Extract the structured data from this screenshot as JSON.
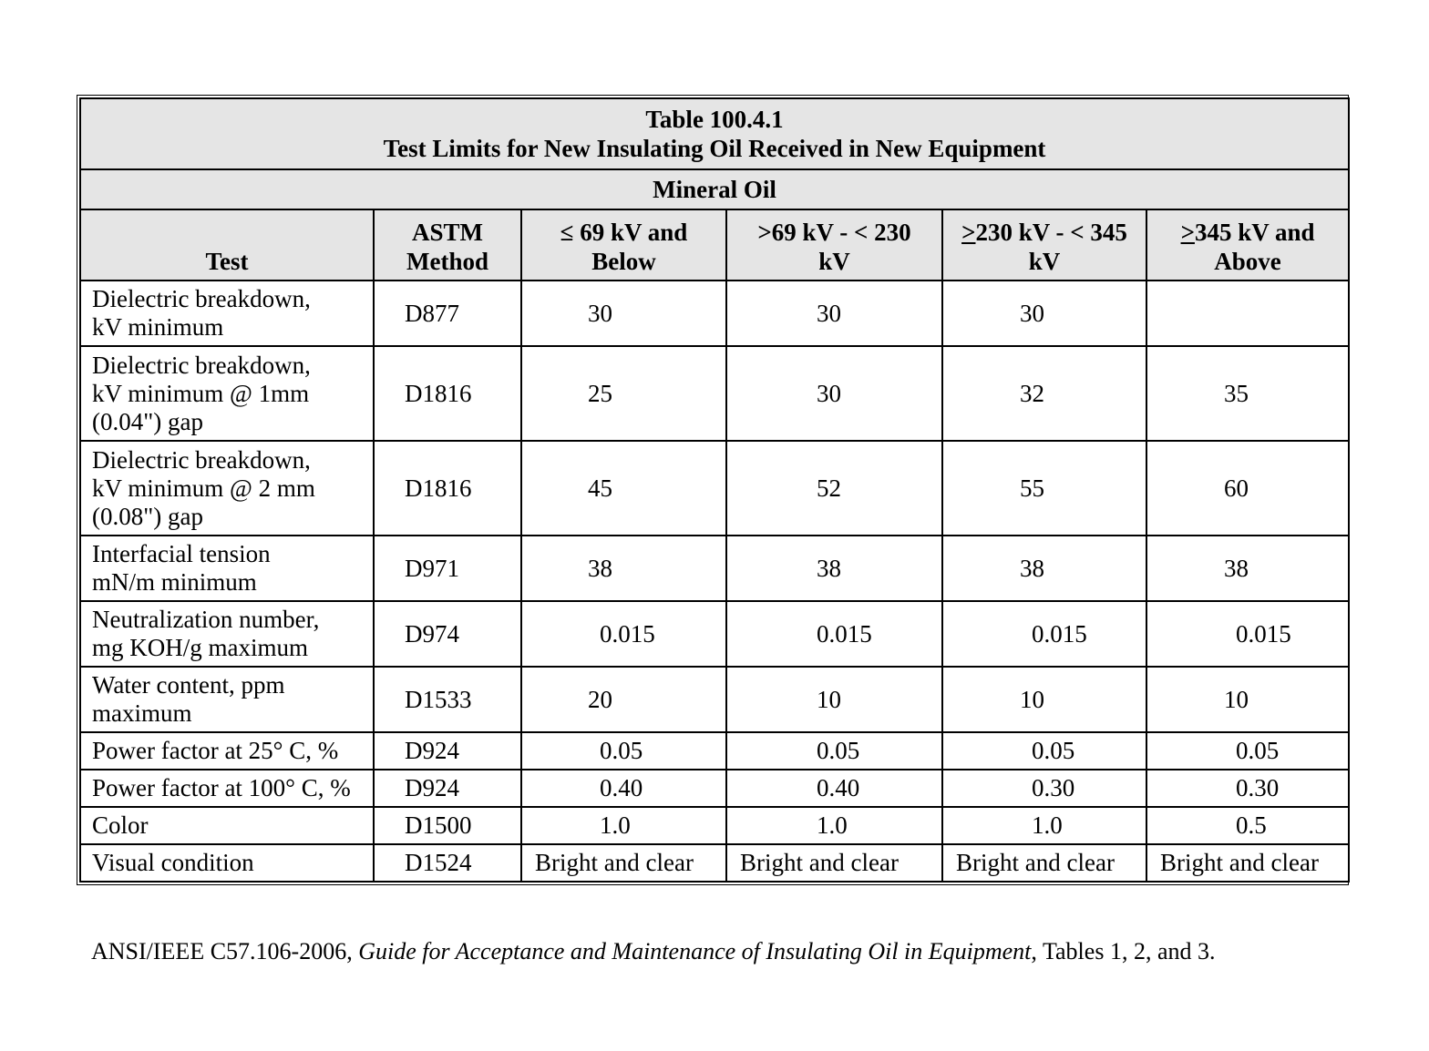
{
  "table": {
    "title_line1": "Table 100.4.1",
    "title_line2": "Test Limits for New Insulating Oil Received in New Equipment",
    "subtitle": "Mineral Oil",
    "headers": {
      "test": "Test",
      "astm_line1": "ASTM",
      "astm_line2": "Method",
      "col1_line1": "≤ 69 kV and",
      "col1_line2": "Below",
      "col2_line1": ">69 kV - < 230",
      "col2_line2": "kV",
      "col3_prefix": ">",
      "col3_line1_rest": "230 kV - < 345",
      "col3_line2": "kV",
      "col4_prefix": ">",
      "col4_line1_rest": "345 kV and",
      "col4_line2": "Above"
    },
    "rows": [
      {
        "test_lines": [
          "Dielectric breakdown,",
          "kV minimum"
        ],
        "method": "D877",
        "values": [
          "30",
          "30",
          "30",
          ""
        ]
      },
      {
        "test_lines": [
          "Dielectric breakdown,",
          "kV minimum @ 1mm",
          "(0.04\") gap"
        ],
        "method": "D1816",
        "values": [
          "25",
          "30",
          "32",
          "35"
        ]
      },
      {
        "test_lines": [
          "Dielectric breakdown,",
          "kV minimum @ 2 mm",
          "(0.08\") gap"
        ],
        "method": "D1816",
        "values": [
          "45",
          "52",
          "55",
          "60"
        ]
      },
      {
        "test_lines": [
          "Interfacial tension",
          "mN/m minimum"
        ],
        "method": "D971",
        "values": [
          "38",
          "38",
          "38",
          "38"
        ]
      },
      {
        "test_lines": [
          "Neutralization number,",
          "mg KOH/g maximum"
        ],
        "method": "D974",
        "values": [
          "0.015",
          "0.015",
          "0.015",
          "0.015"
        ]
      },
      {
        "test_lines": [
          "Water content, ppm",
          "maximum"
        ],
        "method": "D1533",
        "values": [
          "20",
          "10",
          "10",
          "10"
        ]
      },
      {
        "test_lines": [
          "Power factor at 25° C, %"
        ],
        "method": "D924",
        "values": [
          "0.05",
          "0.05",
          "0.05",
          "0.05"
        ]
      },
      {
        "test_lines": [
          "Power factor at 100° C, %"
        ],
        "method": "D924",
        "values": [
          "0.40",
          "0.40",
          "0.30",
          "0.30"
        ]
      },
      {
        "test_lines": [
          "Color"
        ],
        "method": "D1500",
        "values": [
          "1.0",
          "1.0",
          "1.0",
          "0.5"
        ]
      },
      {
        "test_lines": [
          "Visual condition"
        ],
        "method": "D1524",
        "values": [
          "Bright and clear",
          "Bright and clear",
          "Bright and clear",
          "Bright and clear"
        ]
      }
    ]
  },
  "citation": {
    "prefix": "ANSI/IEEE C57.106-2006, ",
    "italic": "Guide for Acceptance and Maintenance of Insulating Oil in Equipment",
    "suffix": ", Tables 1, 2, and 3."
  },
  "colors": {
    "header_background": "#e5e5e5",
    "border": "#000000",
    "text": "#000000"
  }
}
